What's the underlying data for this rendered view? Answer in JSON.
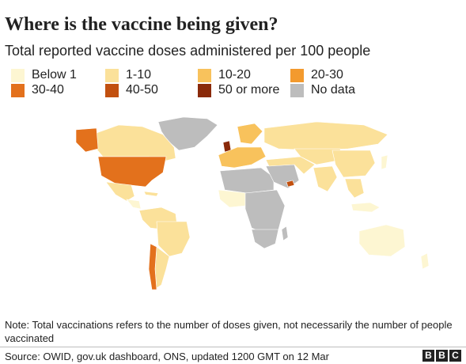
{
  "title": "Where is the vaccine being given?",
  "subtitle": "Total reported vaccine doses administered per 100 people",
  "legend": {
    "items": [
      {
        "label": "Below 1",
        "color": "#fdf6d2"
      },
      {
        "label": "1-10",
        "color": "#fbe19a"
      },
      {
        "label": "10-20",
        "color": "#f8c25c"
      },
      {
        "label": "20-30",
        "color": "#f39a2e"
      },
      {
        "label": "30-40",
        "color": "#e3711c"
      },
      {
        "label": "40-50",
        "color": "#c2500f"
      },
      {
        "label": "50 or more",
        "color": "#8a2a0a"
      },
      {
        "label": "No data",
        "color": "#bdbdbd"
      }
    ]
  },
  "note": "Note: Total vaccinations refers to the number of doses given, not necessarily the number of people vaccinated",
  "source": "Source: OWID, gov.uk dashboard, ONS, updated 1200 GMT on 12 Mar",
  "logo": {
    "letters": [
      "B",
      "B",
      "C"
    ]
  }
}
